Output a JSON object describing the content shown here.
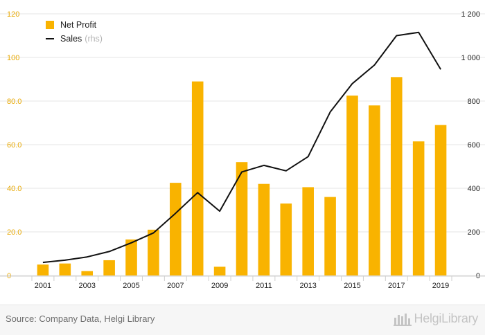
{
  "chart_data": {
    "type": "bar",
    "categories": [
      "2001",
      "2002",
      "2003",
      "2004",
      "2005",
      "2006",
      "2007",
      "2008",
      "2009",
      "2010",
      "2011",
      "2012",
      "2013",
      "2014",
      "2015",
      "2016",
      "2017",
      "2018",
      "2019"
    ],
    "x_tick_labels": [
      "2001",
      "2003",
      "2005",
      "2007",
      "2009",
      "2011",
      "2013",
      "2015",
      "2017",
      "2019"
    ],
    "series": [
      {
        "name": "Net Profit",
        "type": "bar",
        "axis": "left",
        "color": "#f9b300",
        "values": [
          5.0,
          5.5,
          2.0,
          7.0,
          16.5,
          21.0,
          42.5,
          89.0,
          4.0,
          52.0,
          42.0,
          33.0,
          40.5,
          36.0,
          82.5,
          78.0,
          91.0,
          61.5,
          69.0
        ]
      },
      {
        "name": "Sales",
        "type": "line",
        "axis": "right",
        "color": "#111111",
        "values": [
          60,
          70,
          85,
          110,
          150,
          195,
          285,
          380,
          295,
          475,
          505,
          480,
          545,
          750,
          880,
          965,
          1100,
          1115,
          945
        ]
      }
    ],
    "left_axis": {
      "min": 0,
      "max": 120,
      "ticks": [
        "0",
        "20.0",
        "40.0",
        "60.0",
        "80.0",
        "100",
        "120"
      ],
      "color": "#e8a800"
    },
    "right_axis": {
      "min": 0,
      "max": 1200,
      "ticks": [
        "0",
        "200",
        "400",
        "600",
        "800",
        "1 000",
        "1 200"
      ]
    },
    "grid": true,
    "legend_position": "top-left"
  },
  "legend": {
    "net_profit_label": "Net Profit",
    "sales_label": "Sales",
    "sales_note": "(rhs)"
  },
  "footer": {
    "source": "Source: Company Data, Helgi Library",
    "brand": "HelgiLibrary"
  }
}
